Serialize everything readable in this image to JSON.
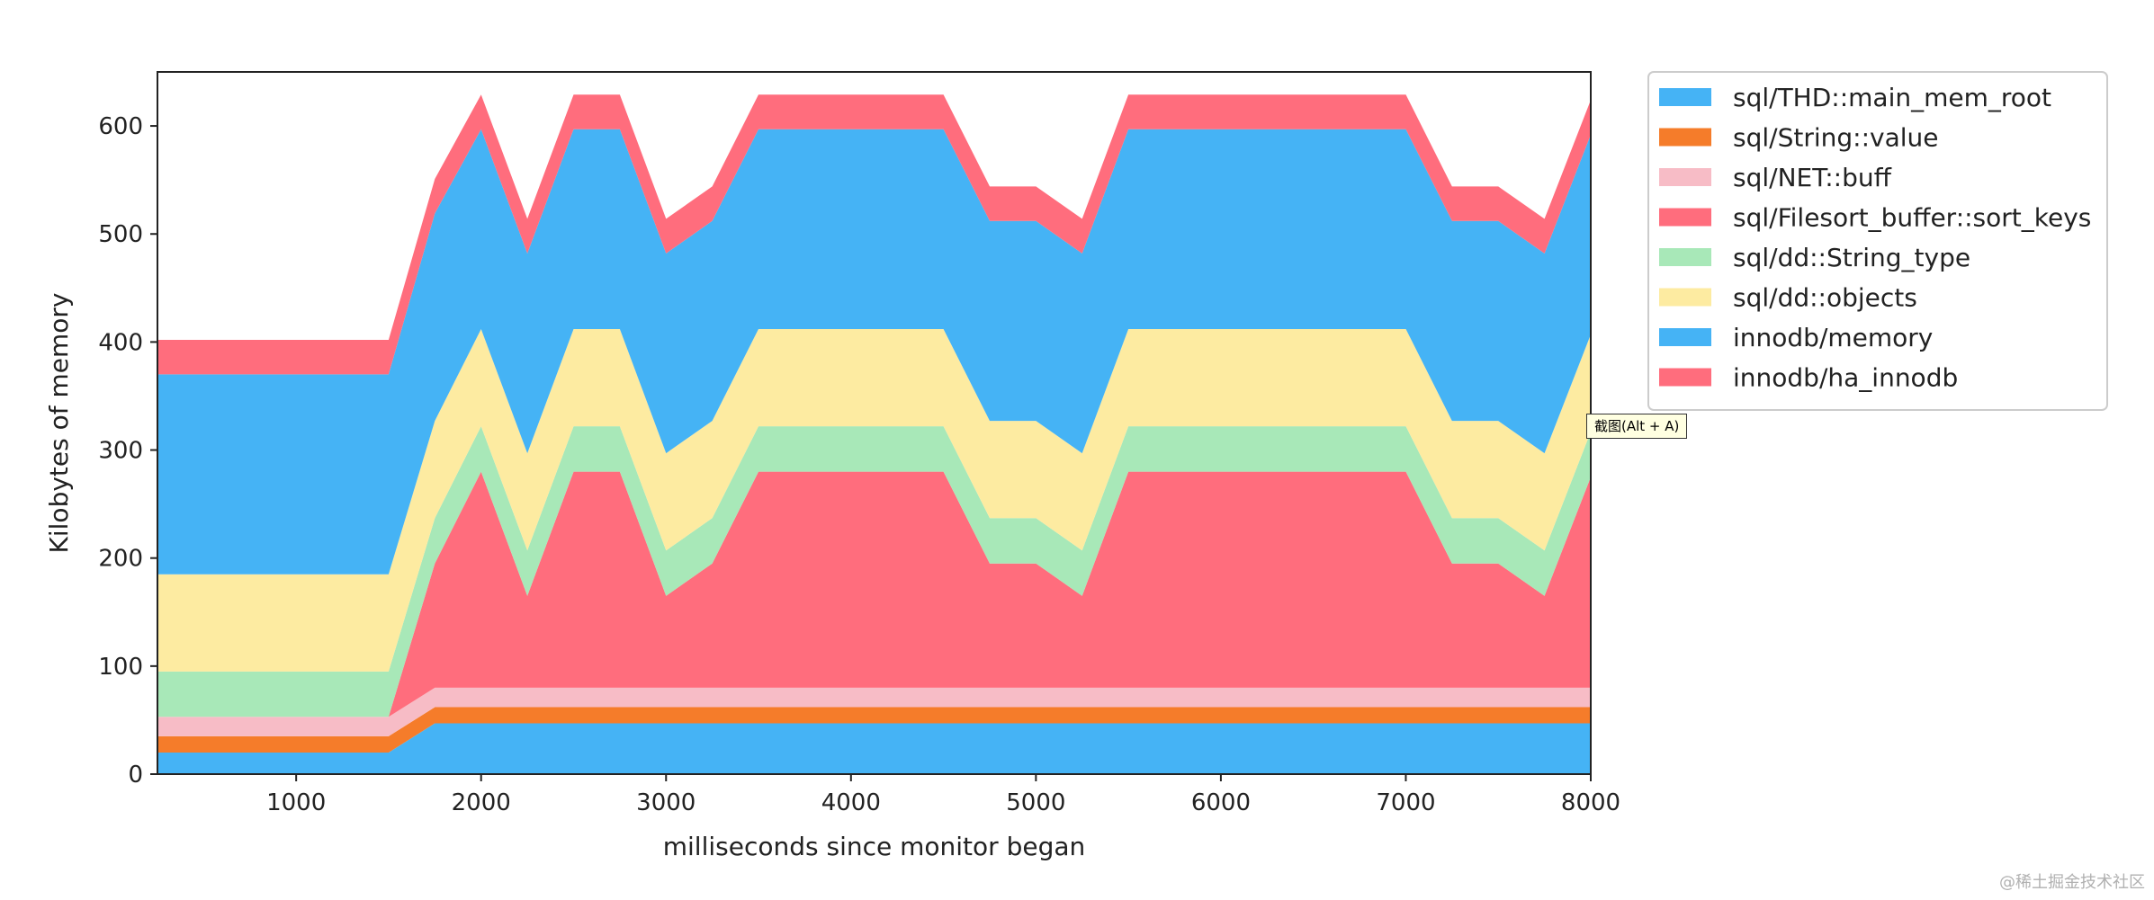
{
  "chart_data": {
    "type": "area",
    "stacked": true,
    "title": "",
    "xlabel": "milliseconds since monitor began",
    "ylabel": "Kilobytes of memory",
    "xlim": [
      250,
      8000
    ],
    "ylim": [
      0,
      650
    ],
    "xticks": [
      1000,
      2000,
      3000,
      4000,
      5000,
      6000,
      7000,
      8000
    ],
    "yticks": [
      0,
      100,
      200,
      300,
      400,
      500,
      600
    ],
    "grid": false,
    "legend_position": "outside-right",
    "x": [
      250,
      500,
      750,
      1000,
      1250,
      1500,
      1750,
      2000,
      2250,
      2500,
      2750,
      3000,
      3250,
      3500,
      3750,
      4000,
      4250,
      4500,
      4750,
      5000,
      5250,
      5500,
      5750,
      6000,
      6250,
      6500,
      6750,
      7000,
      7250,
      7500,
      7750,
      8000
    ],
    "series": [
      {
        "name": "sql/THD::main_mem_root",
        "color": "#45b3f5",
        "values": [
          20,
          20,
          20,
          20,
          20,
          20,
          47,
          47,
          47,
          47,
          47,
          47,
          47,
          47,
          47,
          47,
          47,
          47,
          47,
          47,
          47,
          47,
          47,
          47,
          47,
          47,
          47,
          47,
          47,
          47,
          47,
          47
        ]
      },
      {
        "name": "sql/String::value",
        "color": "#f57c2a",
        "values": [
          15,
          15,
          15,
          15,
          15,
          15,
          15,
          15,
          15,
          15,
          15,
          15,
          15,
          15,
          15,
          15,
          15,
          15,
          15,
          15,
          15,
          15,
          15,
          15,
          15,
          15,
          15,
          15,
          15,
          15,
          15,
          15
        ]
      },
      {
        "name": "sql/NET::buff",
        "color": "#f7bcc6",
        "values": [
          18,
          18,
          18,
          18,
          18,
          18,
          18,
          18,
          18,
          18,
          18,
          18,
          18,
          18,
          18,
          18,
          18,
          18,
          18,
          18,
          18,
          18,
          18,
          18,
          18,
          18,
          18,
          18,
          18,
          18,
          18,
          18
        ]
      },
      {
        "name": "sql/Filesort_buffer::sort_keys",
        "color": "#ff6d7d",
        "values": [
          0,
          0,
          0,
          0,
          0,
          0,
          115,
          200,
          85,
          200,
          200,
          85,
          115,
          200,
          200,
          200,
          200,
          200,
          115,
          115,
          85,
          200,
          200,
          200,
          200,
          200,
          200,
          200,
          115,
          115,
          85,
          195
        ]
      },
      {
        "name": "sql/dd::String_type",
        "color": "#a8e8b8",
        "values": [
          42,
          42,
          42,
          42,
          42,
          42,
          42,
          42,
          42,
          42,
          42,
          42,
          42,
          42,
          42,
          42,
          42,
          42,
          42,
          42,
          42,
          42,
          42,
          42,
          42,
          42,
          42,
          42,
          42,
          42,
          42,
          42
        ]
      },
      {
        "name": "sql/dd::objects",
        "color": "#fdeba1",
        "values": [
          90,
          90,
          90,
          90,
          90,
          90,
          90,
          90,
          90,
          90,
          90,
          90,
          90,
          90,
          90,
          90,
          90,
          90,
          90,
          90,
          90,
          90,
          90,
          90,
          90,
          90,
          90,
          90,
          90,
          90,
          90,
          90
        ]
      },
      {
        "name": "innodb/memory",
        "color": "#45b3f5",
        "values": [
          185,
          185,
          185,
          185,
          185,
          185,
          192,
          185,
          185,
          185,
          185,
          185,
          185,
          185,
          185,
          185,
          185,
          185,
          185,
          185,
          185,
          185,
          185,
          185,
          185,
          185,
          185,
          185,
          185,
          185,
          185,
          185
        ]
      },
      {
        "name": "innodb/ha_innodb",
        "color": "#ff6d7d",
        "values": [
          32,
          32,
          32,
          32,
          32,
          32,
          32,
          32,
          32,
          32,
          32,
          32,
          32,
          32,
          32,
          32,
          32,
          32,
          32,
          32,
          32,
          32,
          32,
          32,
          32,
          32,
          32,
          32,
          32,
          32,
          32,
          32
        ]
      }
    ]
  },
  "tooltip": "截图(Alt + A)",
  "watermark": "@稀土掘金技术社区"
}
